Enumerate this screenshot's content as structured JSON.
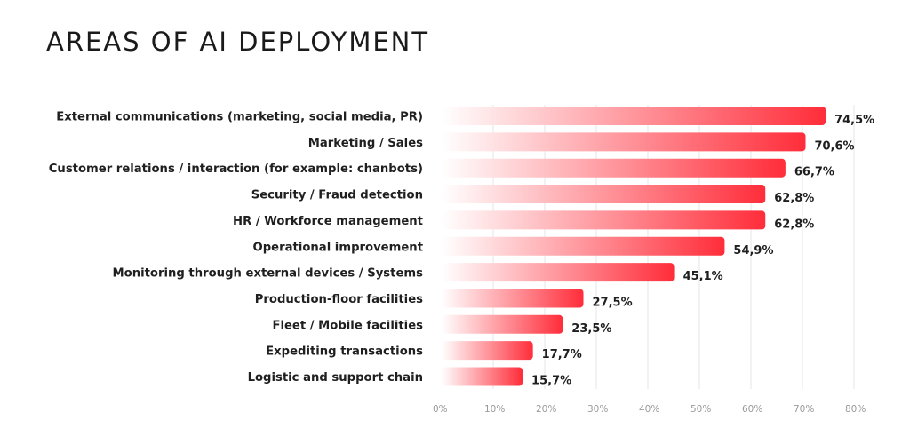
{
  "chart_data": {
    "type": "bar",
    "orientation": "horizontal",
    "title": "AREAS OF AI DEPLOYMENT",
    "categories": [
      "External communications (marketing, social media, PR)",
      "Marketing / Sales",
      "Customer relations / interaction (for example: chanbots)",
      "Security / Fraud detection",
      "HR / Workforce management",
      "Operational improvement",
      "Monitoring through external devices / Systems",
      "Production-floor facilities",
      "Fleet / Mobile facilities",
      "Expediting transactions",
      "Logistic and support chain"
    ],
    "values": [
      74.5,
      70.6,
      66.7,
      62.8,
      62.8,
      54.9,
      45.1,
      27.5,
      23.5,
      17.7,
      15.7
    ],
    "value_labels": [
      "74,5%",
      "70,6%",
      "66,7%",
      "62,8%",
      "62,8%",
      "54,9%",
      "45,1%",
      "27,5%",
      "23,5%",
      "17,7%",
      "15,7%"
    ],
    "xlim": [
      0,
      80
    ],
    "x_ticks": [
      0,
      10,
      20,
      30,
      40,
      50,
      60,
      70,
      80
    ],
    "x_tick_labels": [
      "0%",
      "10%",
      "20%",
      "30%",
      "40%",
      "50%",
      "60%",
      "70%",
      "80%"
    ],
    "grid": true,
    "colors": {
      "bar_start": "#ffffff",
      "bar_end": "#ff2d3a",
      "grid": "#e6e6e6",
      "text": "#1f1f1f",
      "tick": "#9a9a9a"
    }
  }
}
